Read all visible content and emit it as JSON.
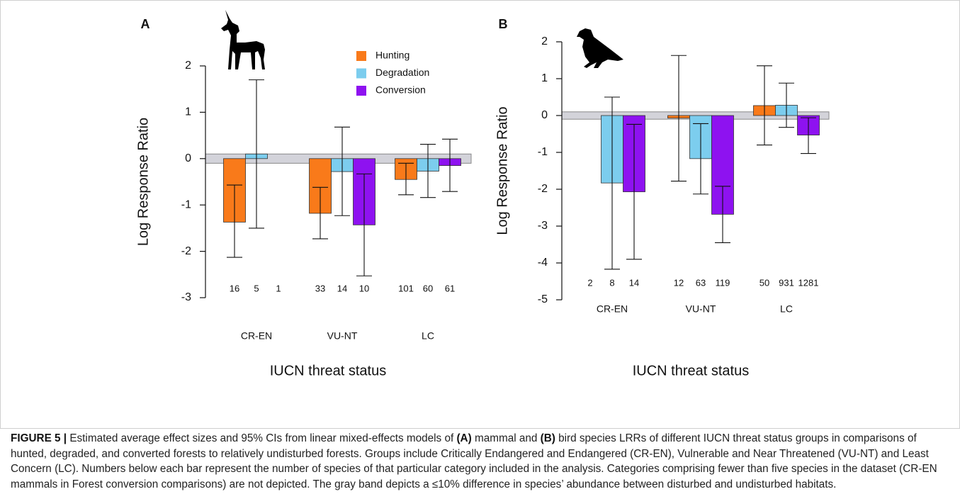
{
  "chart_data": [
    {
      "type": "bar",
      "panel": "A",
      "y_label": "Log Response Ratio",
      "x_label": "IUCN threat status",
      "categories": [
        "CR-EN",
        "VU-NT",
        "LC"
      ],
      "ylim": [
        -3,
        2
      ],
      "yticks": [
        -3,
        -2,
        -1,
        0,
        1,
        2
      ],
      "band": [
        -0.1,
        0.1
      ],
      "legend": true,
      "series": [
        {
          "name": "Hunting",
          "color": "#f97a1a",
          "values": [
            -1.37,
            -1.18,
            -0.45
          ],
          "ci_lower": [
            -2.13,
            -1.73,
            -0.78
          ],
          "ci_upper": [
            -0.57,
            -0.62,
            -0.1
          ],
          "n": [
            16,
            33,
            101
          ]
        },
        {
          "name": "Degradation",
          "color": "#7ccdee",
          "values": [
            0.1,
            -0.28,
            -0.27
          ],
          "ci_lower": [
            -1.5,
            -1.23,
            -0.84
          ],
          "ci_upper": [
            1.7,
            0.68,
            0.31
          ],
          "n": [
            5,
            14,
            60
          ]
        },
        {
          "name": "Conversion",
          "color": "#8e12f0",
          "values": [
            null,
            -1.43,
            -0.15
          ],
          "ci_lower": [
            null,
            -2.53,
            -0.71
          ],
          "ci_upper": [
            null,
            -0.33,
            0.42
          ],
          "n": [
            1,
            10,
            61
          ]
        }
      ]
    },
    {
      "type": "bar",
      "panel": "B",
      "y_label": "Log Response Ratio",
      "x_label": "IUCN threat status",
      "categories": [
        "CR-EN",
        "VU-NT",
        "LC"
      ],
      "ylim": [
        -5,
        2
      ],
      "yticks": [
        -5,
        -4,
        -3,
        -2,
        -1,
        0,
        1,
        2
      ],
      "band": [
        -0.1,
        0.1
      ],
      "series": [
        {
          "name": "Hunting",
          "color": "#f97a1a",
          "values": [
            null,
            -0.07,
            0.27
          ],
          "ci_lower": [
            null,
            -1.78,
            -0.8
          ],
          "ci_upper": [
            null,
            1.63,
            1.35
          ],
          "n": [
            2,
            12,
            50
          ]
        },
        {
          "name": "Degradation",
          "color": "#7ccdee",
          "values": [
            -1.83,
            -1.17,
            0.28
          ],
          "ci_lower": [
            -4.17,
            -2.13,
            -0.32
          ],
          "ci_upper": [
            0.5,
            -0.22,
            0.88
          ],
          "n": [
            8,
            63,
            931
          ]
        },
        {
          "name": "Conversion",
          "color": "#8e12f0",
          "values": [
            -2.07,
            -2.68,
            -0.53
          ],
          "ci_lower": [
            -3.9,
            -3.45,
            -1.03
          ],
          "ci_upper": [
            -0.24,
            -1.92,
            -0.06
          ],
          "n": [
            14,
            119,
            1281
          ]
        }
      ]
    }
  ],
  "caption": {
    "parts": [
      {
        "text": "FIGURE 5 |",
        "bold": true
      },
      {
        "text": " Estimated average effect sizes and 95% CIs from linear mixed-effects models of "
      },
      {
        "text": "(A)",
        "bold": true
      },
      {
        "text": " mammal and "
      },
      {
        "text": "(B)",
        "bold": true
      },
      {
        "text": " bird species LRRs of different IUCN threat status groups in comparisons of hunted, degraded, and converted forests to relatively undisturbed forests. Groups include Critically Endangered and Endangered (CR-EN), Vulnerable and Near Threatened (VU-NT) and Least Concern (LC). Numbers below each bar represent the number of species of that particular category included in the analysis. Categories comprising fewer than five species in the dataset (CR-EN mammals in Forest conversion comparisons) are not depicted. The gray band depicts a ≤10% difference in species’ abundance between disturbed and undisturbed habitats."
      }
    ]
  }
}
